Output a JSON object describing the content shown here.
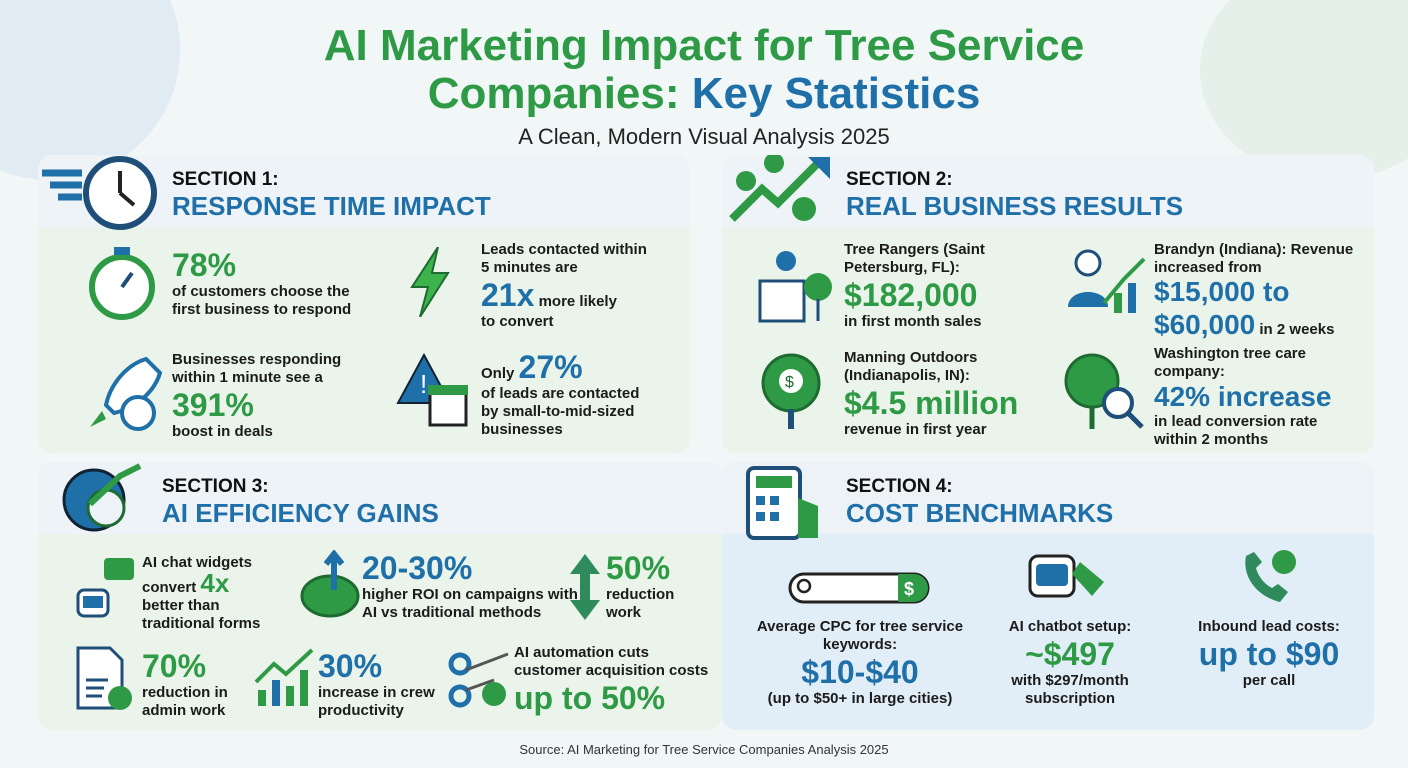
{
  "header": {
    "title_line1": "AI Marketing Impact for Tree Service",
    "title_line2_green": "Companies: ",
    "title_line2_blue": "Key Statistics",
    "subtitle": "A Clean, Modern Visual Analysis 2025"
  },
  "colors": {
    "green": "#2e9a46",
    "blue": "#1f6fa8",
    "text": "#1b1b1b"
  },
  "section1": {
    "label": "SECTION 1:",
    "heading": "RESPONSE TIME IMPACT",
    "icon": "stopwatch-icon",
    "stats": [
      {
        "icon": "stopwatch-cycle-icon",
        "value": "78%",
        "text": "of customers choose the first business to respond"
      },
      {
        "icon": "lightning-icon",
        "pre": "Leads contacted within 5 minutes are",
        "value": "21x",
        "text": "more likely",
        "post": "to convert"
      },
      {
        "icon": "rocket-icon",
        "pre": "Businesses responding within 1 minute see a",
        "value": "391%",
        "text": "boost in deals"
      },
      {
        "icon": "warning-store-icon",
        "pre": "Only",
        "value": "27%",
        "text": "of leads are contacted by small-to-mid-sized businesses"
      }
    ]
  },
  "section2": {
    "label": "SECTION 2:",
    "heading": "REAL BUSINESS RESULTS",
    "icon": "money-growth-icon",
    "stats": [
      {
        "icon": "building-tree-icon",
        "pre": "Tree Rangers (Saint Petersburg, FL):",
        "value": "$182,000",
        "text": "in first month sales"
      },
      {
        "icon": "person-chart-icon",
        "pre": "Brandyn (Indiana): Revenue increased from",
        "value": "$15,000 to",
        "value2": "$60,000",
        "text": "in 2 weeks"
      },
      {
        "icon": "money-tree-icon",
        "pre": "Manning Outdoors (Indianapolis, IN):",
        "value": "$4.5 million",
        "text": "revenue in first year"
      },
      {
        "icon": "tree-magnifier-icon",
        "pre": "Washington tree care company:",
        "value": "42% increase",
        "text": "in lead conversion rate within 2 months"
      }
    ]
  },
  "section3": {
    "label": "SECTION 3:",
    "heading": "AI EFFICIENCY GAINS",
    "icon": "gear-brain-icon",
    "stats": [
      {
        "icon": "chatbot-icon",
        "pre": "AI chat widgets convert",
        "value": "4x",
        "text": "better than traditional forms"
      },
      {
        "icon": "piggy-bank-icon",
        "value": "20-30%",
        "text": "higher ROI on campaigns with AI vs traditional methods"
      },
      {
        "icon": "up-down-arrow-icon",
        "value": "50%",
        "text": "reduction work"
      },
      {
        "icon": "document-check-icon",
        "value": "70%",
        "text": "reduction in admin work"
      },
      {
        "icon": "bar-chart-icon",
        "value": "30%",
        "text": "increase in crew productivity"
      },
      {
        "icon": "scissors-dollar-icon",
        "pre": "AI automation cuts customer acquisition costs",
        "value": "up to 50%"
      }
    ]
  },
  "section4": {
    "label": "SECTION 4:",
    "heading": "COST BENCHMARKS",
    "icon": "calculator-tag-icon",
    "stats": [
      {
        "icon": "search-dollar-icon",
        "pre": "Average CPC for tree service keywords:",
        "value": "$10-$40",
        "text": "(up to $50+ in large cities)"
      },
      {
        "icon": "robot-price-tag-icon",
        "pre": "AI chatbot setup:",
        "value": "~$497",
        "text": "with $297/month subscription"
      },
      {
        "icon": "phone-dollar-icon",
        "pre": "Inbound lead costs:",
        "value": "up to $90",
        "text": "per call"
      }
    ]
  },
  "footer": {
    "source": "Source: AI Marketing for Tree Service Companies Analysis 2025"
  }
}
